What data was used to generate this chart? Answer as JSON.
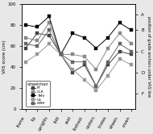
{
  "title": "",
  "xlabel": "",
  "ylabel_left": "VAS score (cm)",
  "ylabel_right": "position of grade anchors under VAS line",
  "xlim": [
    -0.3,
    9.3
  ],
  "ylim": [
    0,
    100
  ],
  "ylim_right": [
    0,
    100
  ],
  "yticks_left": [
    0,
    20,
    40,
    60,
    80,
    100
  ],
  "right_tick_positions": [
    15,
    35,
    55,
    75,
    90
  ],
  "right_tick_labels": [
    "F",
    "D",
    "C",
    "B",
    "A"
  ],
  "categories": [
    "frame",
    "tip",
    "uprights",
    "fold",
    "seat",
    "footrest",
    "casters",
    "brakes",
    "wheels",
    "crown"
  ],
  "wheelchair_types": [
    "FT",
    "OLR",
    "TMV",
    "US",
    "WRR"
  ],
  "colors": [
    "#444444",
    "#888888",
    "#000000",
    "#999999",
    "#666666"
  ],
  "data": {
    "FT": [
      58,
      72,
      70,
      52,
      35,
      42,
      22,
      42,
      55,
      52
    ],
    "OLR": [
      68,
      65,
      82,
      52,
      52,
      50,
      38,
      58,
      72,
      62
    ],
    "TMV": [
      80,
      78,
      88,
      52,
      72,
      68,
      58,
      68,
      82,
      75
    ],
    "US": [
      45,
      52,
      62,
      52,
      38,
      28,
      18,
      32,
      48,
      42
    ],
    "WRR": [
      62,
      60,
      75,
      52,
      45,
      45,
      22,
      45,
      62,
      55
    ]
  },
  "legend_title": "wheelchair",
  "background_color": "#e8e8e8",
  "plot_bg": "#ffffff"
}
